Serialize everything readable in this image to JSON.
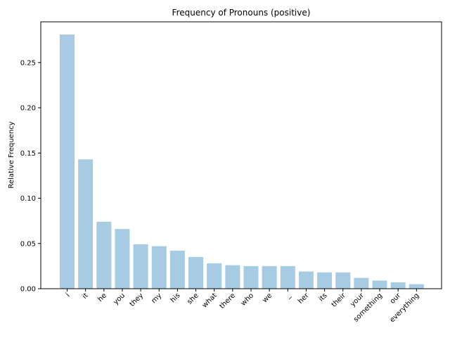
{
  "chart_data": {
    "type": "bar",
    "title": "Frequency of Pronouns (positive)",
    "xlabel": "",
    "ylabel": "Relative Frequency",
    "categories": [
      "i",
      "it",
      "he",
      "you",
      "they",
      "my",
      "his",
      "she",
      "what",
      "there",
      "who",
      "we",
      "_",
      "her",
      "its",
      "their",
      "your",
      "something",
      "our",
      "everything"
    ],
    "values": [
      0.281,
      0.143,
      0.074,
      0.066,
      0.049,
      0.047,
      0.042,
      0.035,
      0.028,
      0.026,
      0.025,
      0.025,
      0.025,
      0.019,
      0.018,
      0.018,
      0.012,
      0.009,
      0.007,
      0.005
    ],
    "ylim": [
      0,
      0.295
    ],
    "yticks": [
      0.0,
      0.05,
      0.1,
      0.15,
      0.2,
      0.25
    ],
    "ytick_labels": [
      "0.00",
      "0.05",
      "0.10",
      "0.15",
      "0.20",
      "0.25"
    ],
    "bar_color": "#a6cbe3",
    "grid": false
  }
}
